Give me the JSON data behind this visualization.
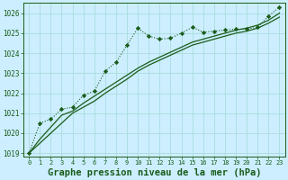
{
  "title": "Graphe pression niveau de la mer (hPa)",
  "background_color": "#cceeff",
  "grid_color": "#aadddd",
  "line_color": "#1a5c1a",
  "x_values": [
    0,
    1,
    2,
    3,
    4,
    5,
    6,
    7,
    8,
    9,
    10,
    11,
    12,
    13,
    14,
    15,
    16,
    17,
    18,
    19,
    20,
    21,
    22,
    23
  ],
  "series1": [
    1019.0,
    1020.5,
    1020.7,
    1021.2,
    1021.3,
    1021.9,
    1022.1,
    1023.1,
    1023.55,
    1024.4,
    1025.25,
    1024.85,
    1024.7,
    1024.75,
    1025.0,
    1025.3,
    1025.05,
    1025.1,
    1025.15,
    1025.2,
    1025.2,
    1025.3,
    1025.85,
    1026.3
  ],
  "series2": [
    1019.0,
    1019.5,
    1020.0,
    1020.5,
    1021.0,
    1021.3,
    1021.6,
    1022.0,
    1022.35,
    1022.7,
    1023.1,
    1023.4,
    1023.65,
    1023.9,
    1024.15,
    1024.4,
    1024.55,
    1024.7,
    1024.85,
    1025.0,
    1025.1,
    1025.25,
    1025.5,
    1025.8
  ],
  "series3": [
    1019.0,
    1019.7,
    1020.3,
    1020.9,
    1021.1,
    1021.5,
    1021.85,
    1022.2,
    1022.55,
    1022.9,
    1023.25,
    1023.55,
    1023.8,
    1024.05,
    1024.3,
    1024.55,
    1024.7,
    1024.85,
    1025.0,
    1025.15,
    1025.25,
    1025.4,
    1025.65,
    1026.0
  ],
  "ylim": [
    1019.0,
    1026.5
  ],
  "yticks": [
    1019,
    1020,
    1021,
    1022,
    1023,
    1024,
    1025,
    1026
  ],
  "xticks": [
    0,
    1,
    2,
    3,
    4,
    5,
    6,
    7,
    8,
    9,
    10,
    11,
    12,
    13,
    14,
    15,
    16,
    17,
    18,
    19,
    20,
    21,
    22,
    23
  ],
  "title_fontsize": 7.5
}
